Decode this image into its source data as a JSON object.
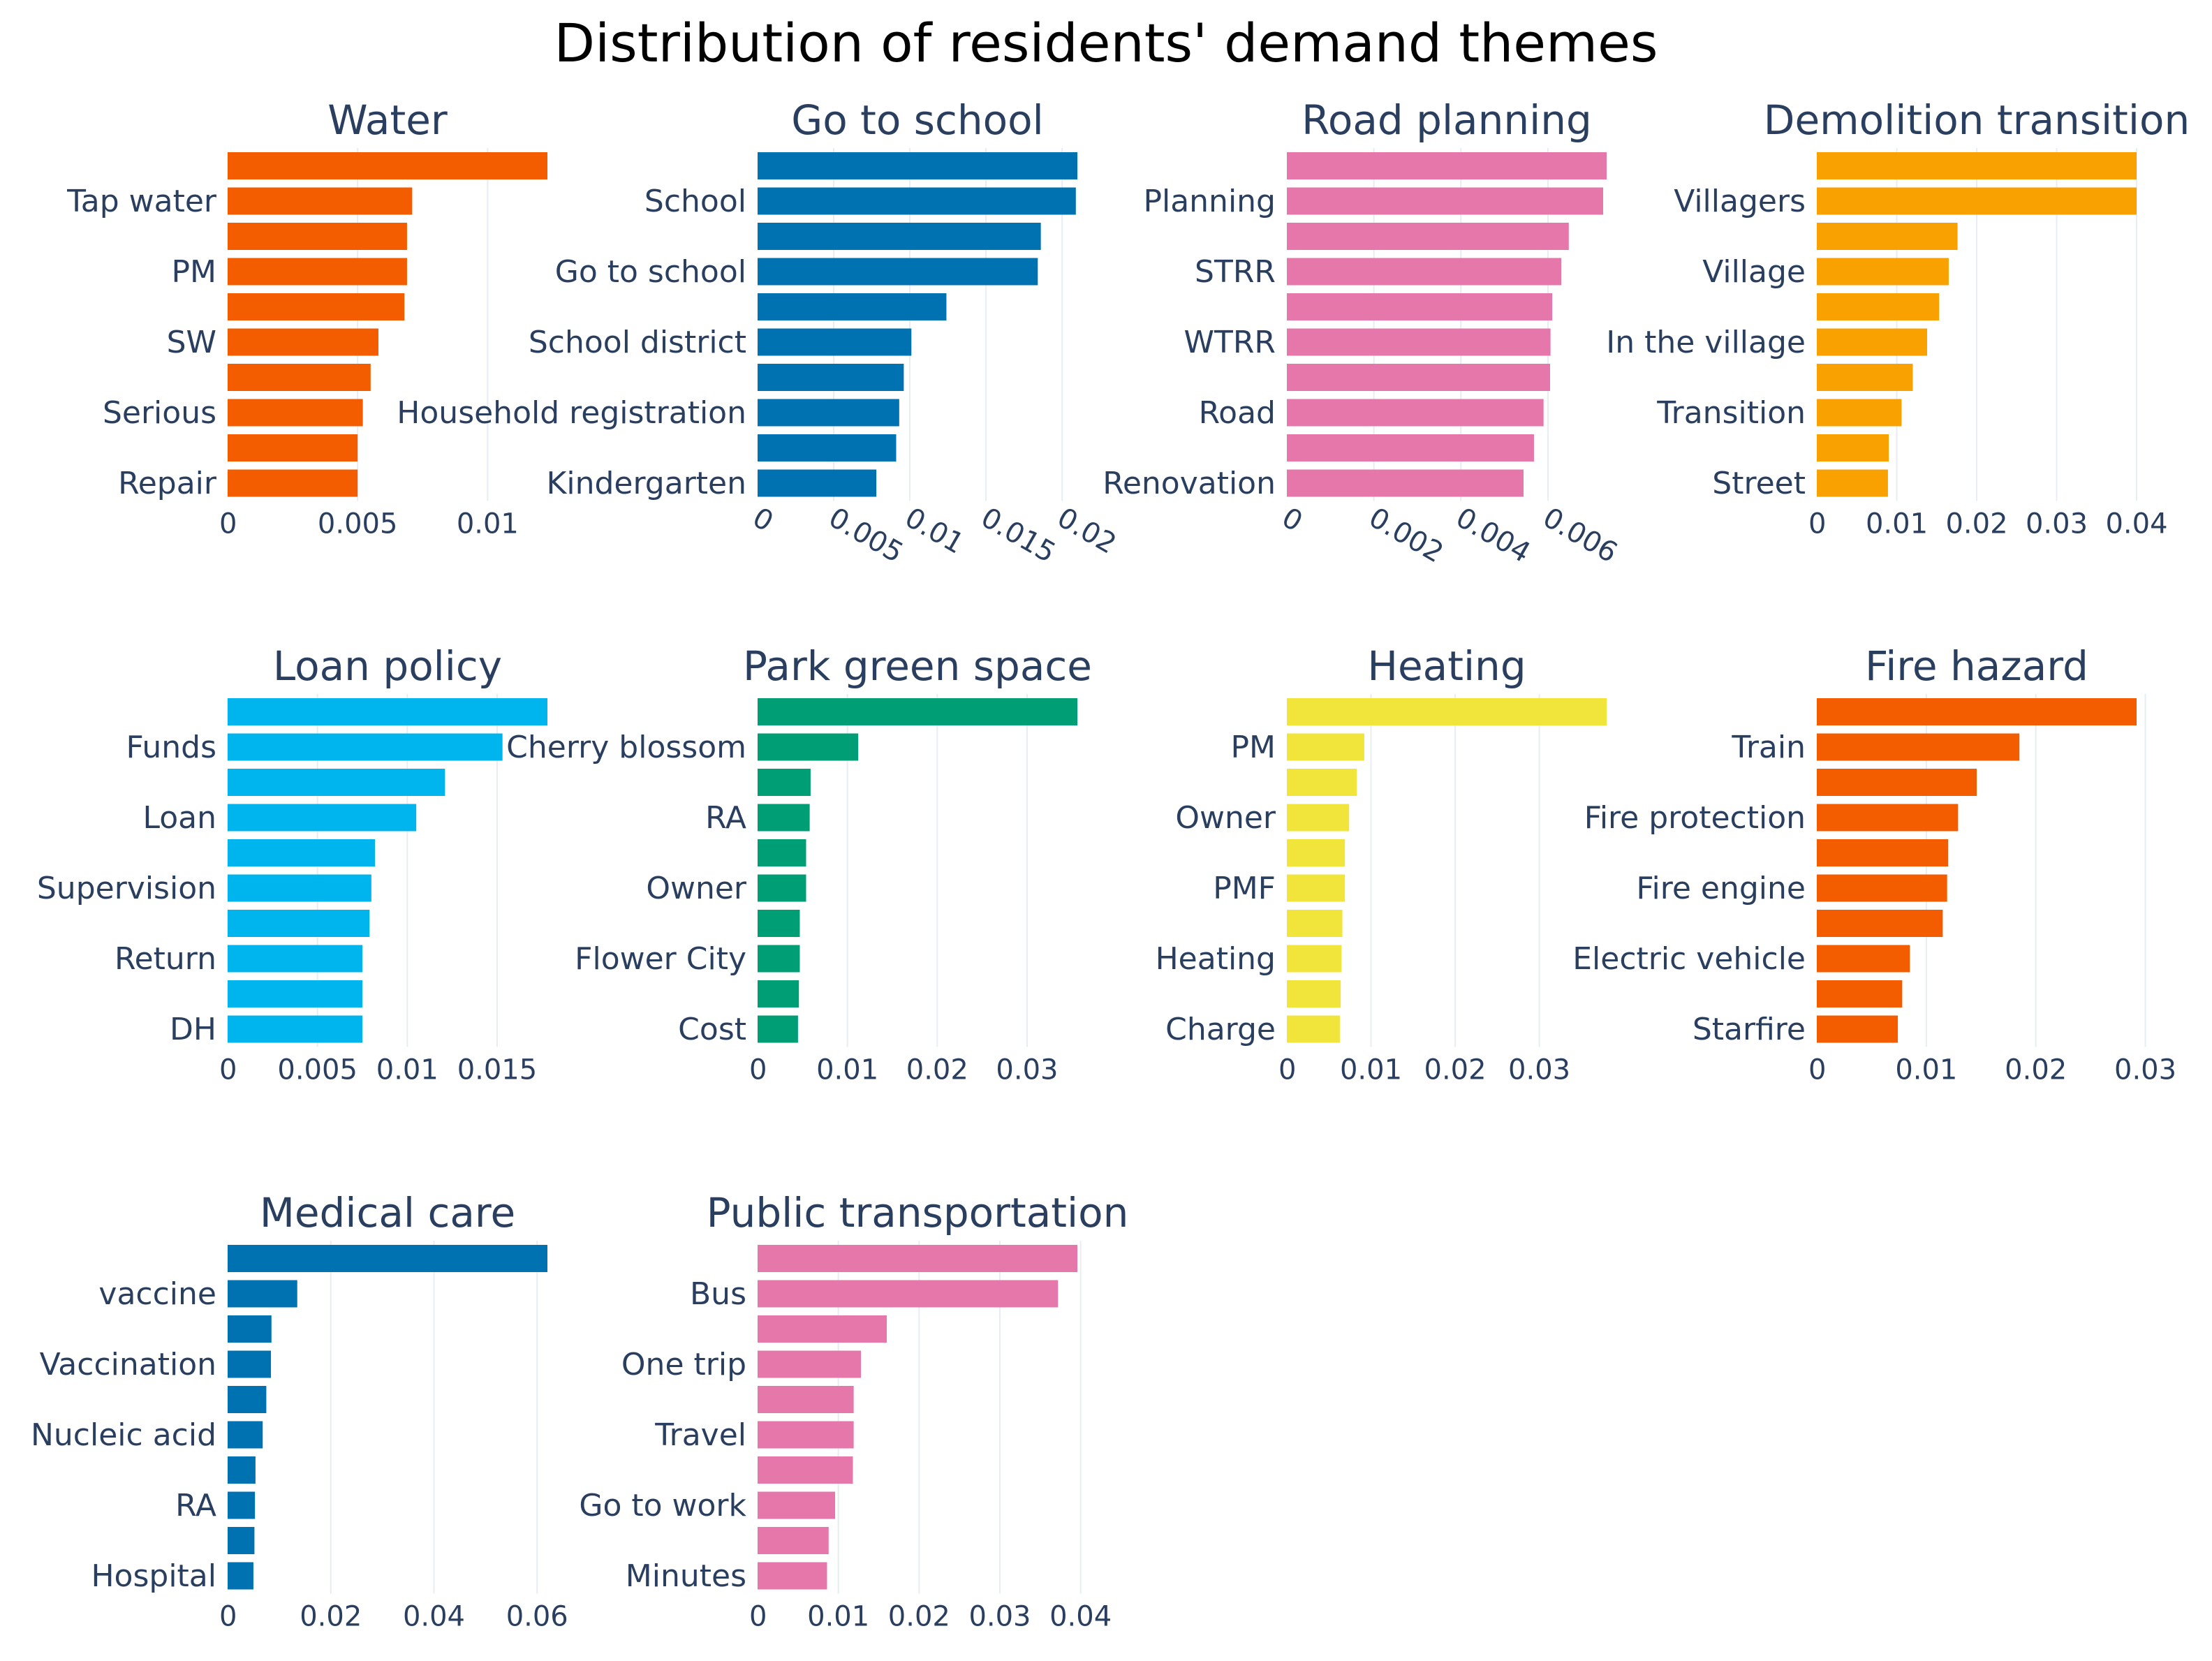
{
  "title": "Distribution of residents' demand themes",
  "chart_data": [
    {
      "type": "bar",
      "orientation": "horizontal",
      "title": "Water",
      "labels": [
        "",
        "Tap water",
        "",
        "PM",
        "",
        "SW",
        "",
        "Serious",
        "",
        "Repair"
      ],
      "values": [
        0.0123,
        0.0071,
        0.0069,
        0.0069,
        0.0068,
        0.0058,
        0.0055,
        0.0052,
        0.005,
        0.005
      ],
      "color": "#f45c00",
      "xlim": [
        0,
        0.0123
      ],
      "xticks": [
        0,
        0.005,
        0.01
      ],
      "xtick_labels": [
        "0",
        "0.005",
        "0.01"
      ]
    },
    {
      "type": "bar",
      "orientation": "horizontal",
      "title": "Go to school",
      "labels": [
        "",
        "School",
        "",
        "Go to school",
        "",
        "School district",
        "",
        "Household registration",
        "",
        "Kindergarten"
      ],
      "values": [
        0.021,
        0.0209,
        0.0186,
        0.0184,
        0.0124,
        0.0101,
        0.0096,
        0.0093,
        0.0091,
        0.0078
      ],
      "color": "#0072b2",
      "xlim": [
        0,
        0.021
      ],
      "xticks": [
        0,
        0.005,
        0.01,
        0.015,
        0.02
      ],
      "xtick_labels": [
        "0",
        "0.005",
        "0.01",
        "0.015",
        "0.02"
      ],
      "rotate_ticks": true
    },
    {
      "type": "bar",
      "orientation": "horizontal",
      "title": "Road planning",
      "labels": [
        "",
        "Planning",
        "",
        "STRR",
        "",
        "WTRR",
        "",
        "Road",
        "",
        "Renovation"
      ],
      "values": [
        0.00735,
        0.00727,
        0.00648,
        0.00631,
        0.0061,
        0.00606,
        0.00605,
        0.0059,
        0.00568,
        0.00544
      ],
      "color": "#e577aa",
      "xlim": [
        0,
        0.00735
      ],
      "xticks": [
        0,
        0.002,
        0.004,
        0.006
      ],
      "xtick_labels": [
        "0",
        "0.002",
        "0.004",
        "0.006"
      ],
      "rotate_ticks": true
    },
    {
      "type": "bar",
      "orientation": "horizontal",
      "title": "Demolition transition",
      "labels": [
        "",
        "Villagers",
        "",
        "Village",
        "",
        "In the village",
        "",
        "Transition",
        "",
        "Street"
      ],
      "values": [
        0.04,
        0.04,
        0.0176,
        0.0165,
        0.0153,
        0.0138,
        0.012,
        0.0106,
        0.009,
        0.0089
      ],
      "color": "#f8a100",
      "xlim": [
        0,
        0.04
      ],
      "xticks": [
        0,
        0.01,
        0.02,
        0.03,
        0.04
      ],
      "xtick_labels": [
        "0",
        "0.01",
        "0.02",
        "0.03",
        "0.04"
      ]
    },
    {
      "type": "bar",
      "orientation": "horizontal",
      "title": "Loan policy",
      "labels": [
        "",
        "Funds",
        "",
        "Loan",
        "",
        "Supervision",
        "",
        "Return",
        "",
        "DH"
      ],
      "values": [
        0.0178,
        0.0153,
        0.0121,
        0.0105,
        0.0082,
        0.008,
        0.0079,
        0.0075,
        0.0075,
        0.0075
      ],
      "color": "#00b4ee",
      "xlim": [
        0,
        0.0178
      ],
      "xticks": [
        0,
        0.005,
        0.01,
        0.015
      ],
      "xtick_labels": [
        "0",
        "0.005",
        "0.01",
        "0.015"
      ]
    },
    {
      "type": "bar",
      "orientation": "horizontal",
      "title": "Park green space",
      "labels": [
        "",
        "Cherry blossom",
        "",
        "RA",
        "",
        "Owner",
        "",
        "Flower City",
        "",
        "Cost"
      ],
      "values": [
        0.0356,
        0.0112,
        0.0059,
        0.0058,
        0.0054,
        0.0054,
        0.0047,
        0.0047,
        0.0046,
        0.0045
      ],
      "color": "#009e74",
      "xlim": [
        0,
        0.0356
      ],
      "xticks": [
        0,
        0.01,
        0.02,
        0.03
      ],
      "xtick_labels": [
        "0",
        "0.01",
        "0.02",
        "0.03"
      ]
    },
    {
      "type": "bar",
      "orientation": "horizontal",
      "title": "Heating",
      "labels": [
        "",
        "PM",
        "",
        "Owner",
        "",
        "PMF",
        "",
        "Heating",
        "",
        "Charge"
      ],
      "values": [
        0.038,
        0.0092,
        0.0083,
        0.0074,
        0.0069,
        0.0069,
        0.0066,
        0.0065,
        0.0064,
        0.0063
      ],
      "color": "#f1e43a",
      "xlim": [
        0,
        0.038
      ],
      "xticks": [
        0,
        0.01,
        0.02,
        0.03
      ],
      "xtick_labels": [
        "0",
        "0.01",
        "0.02",
        "0.03"
      ]
    },
    {
      "type": "bar",
      "orientation": "horizontal",
      "title": "Fire hazard",
      "labels": [
        "",
        "Train",
        "",
        "Fire protection",
        "",
        "Fire engine",
        "",
        "Electric vehicle",
        "",
        "Starfire"
      ],
      "values": [
        0.0292,
        0.0185,
        0.0146,
        0.0129,
        0.012,
        0.0119,
        0.0115,
        0.0085,
        0.0078,
        0.0074
      ],
      "color": "#f45c00",
      "xlim": [
        0,
        0.0292
      ],
      "xticks": [
        0,
        0.01,
        0.02,
        0.03
      ],
      "xtick_labels": [
        "0",
        "0.01",
        "0.02",
        "0.03"
      ]
    },
    {
      "type": "bar",
      "orientation": "horizontal",
      "title": "Medical care",
      "labels": [
        "",
        "vaccine",
        "",
        "Vaccination",
        "",
        "Nucleic acid",
        "",
        "RA",
        "",
        "Hospital"
      ],
      "values": [
        0.062,
        0.0135,
        0.0085,
        0.0084,
        0.0075,
        0.0068,
        0.0054,
        0.0053,
        0.0052,
        0.005
      ],
      "color": "#0072b2",
      "xlim": [
        0,
        0.062
      ],
      "xticks": [
        0,
        0.02,
        0.04,
        0.06
      ],
      "xtick_labels": [
        "0",
        "0.02",
        "0.04",
        "0.06"
      ]
    },
    {
      "type": "bar",
      "orientation": "horizontal",
      "title": "Public transportation",
      "labels": [
        "",
        "Bus",
        "",
        "One trip",
        "",
        "Travel",
        "",
        "Go to work",
        "",
        "Minutes"
      ],
      "values": [
        0.0396,
        0.0372,
        0.016,
        0.0128,
        0.0119,
        0.0119,
        0.0118,
        0.0096,
        0.0088,
        0.0086
      ],
      "color": "#e577aa",
      "xlim": [
        0,
        0.0396
      ],
      "xticks": [
        0,
        0.01,
        0.02,
        0.03,
        0.04
      ],
      "xtick_labels": [
        "0",
        "0.01",
        "0.02",
        "0.03",
        "0.04"
      ]
    }
  ]
}
